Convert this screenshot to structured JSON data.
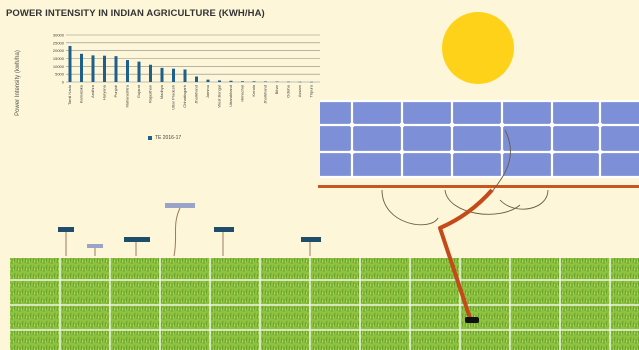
{
  "page": {
    "background": "#fdf6d8"
  },
  "chart_data": {
    "type": "bar",
    "title": "POWER INTENSITY IN INDIAN AGRICULTURE (KWH/HA)",
    "ylabel": "Power Intensity (kwh/ha)",
    "xlabel": "",
    "ylim": [
      0,
      30000
    ],
    "grid": true,
    "legend_position": "bottom-center",
    "yticks": [
      "30000",
      "25000",
      "20000",
      "15000",
      "10000",
      "5000",
      "0"
    ],
    "categories": [
      "Tamil Nadu",
      "Karnataka",
      "Andhra",
      "Haryana",
      "Punjab",
      "Maharashtra",
      "Gujarat",
      "Rajasthan",
      "Madhya",
      "Uttar Pradesh",
      "Chhattisgarh",
      "Jharkhand",
      "Jammu",
      "West Bengal",
      "Uttarakhand",
      "Himachal",
      "Kerala",
      "Jharkhand",
      "Bihar",
      "Odisha",
      "Assam",
      "Tripura"
    ],
    "series": [
      {
        "name": "TE 2016-17",
        "color": "#1f5f8b",
        "values": [
          23000,
          18000,
          17000,
          16800,
          16500,
          14000,
          13000,
          11000,
          9000,
          8500,
          8000,
          3500,
          1500,
          1000,
          800,
          500,
          450,
          350,
          300,
          200,
          150,
          100
        ]
      }
    ]
  },
  "illustration": {
    "sun_color": "#ffd21a",
    "panel_color": "#7d8fd6",
    "panel_grid_color": "#ffffff",
    "rail_color": "#c9561f",
    "grass_color": "#8fc23f",
    "pipe_color": "#c44a1a",
    "pump_color": "#111111"
  }
}
